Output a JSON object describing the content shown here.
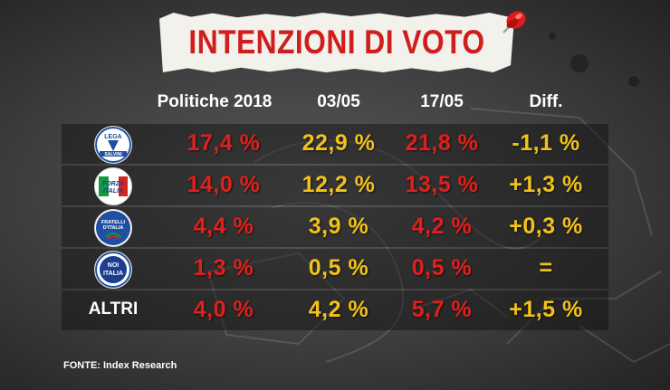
{
  "title": "INTENZIONI DI VOTO",
  "source": "FONTE: Index Research",
  "colors": {
    "title_red": "#d01e1e",
    "value_red": "#e0201c",
    "value_yellow": "#f2c21b"
  },
  "columns": [
    "Politiche 2018",
    "03/05",
    "17/05",
    "Diff."
  ],
  "rows": [
    {
      "label": "",
      "logo": "lega-salvini-logo",
      "logo_text": [
        "LEGA",
        "SALVINI"
      ],
      "values": [
        "17,4 %",
        "22,9 %",
        "21,8 %",
        "-1,1 %"
      ]
    },
    {
      "label": "",
      "logo": "forza-italia-logo",
      "logo_text": [
        "FORZA",
        "ITALIA"
      ],
      "values": [
        "14,0 %",
        "12,2 %",
        "13,5 %",
        "+1,3 %"
      ]
    },
    {
      "label": "",
      "logo": "fratelli-italia-logo",
      "logo_text": [
        "FRATELLI",
        "D'ITALIA"
      ],
      "values": [
        "4,4 %",
        "3,9 %",
        "4,2 %",
        "+0,3 %"
      ]
    },
    {
      "label": "",
      "logo": "noi-con-italia-logo",
      "logo_text": [
        "NOI",
        "ITALIA"
      ],
      "values": [
        "1,3 %",
        "0,5 %",
        "0,5 %",
        "="
      ]
    },
    {
      "label": "ALTRI",
      "logo": "",
      "logo_text": [],
      "values": [
        "4,0 %",
        "4,2 %",
        "5,7 %",
        "+1,5 %"
      ]
    }
  ],
  "chart_data": {
    "type": "table",
    "title": "INTENZIONI DI VOTO",
    "columns": [
      "Politiche 2018",
      "03/05",
      "17/05",
      "Diff."
    ],
    "series": [
      {
        "name": "Lega - Salvini",
        "values": [
          17.4,
          22.9,
          21.8,
          -1.1
        ]
      },
      {
        "name": "Forza Italia",
        "values": [
          14.0,
          12.2,
          13.5,
          1.3
        ]
      },
      {
        "name": "Fratelli d'Italia",
        "values": [
          4.4,
          3.9,
          4.2,
          0.3
        ]
      },
      {
        "name": "Noi con l'Italia",
        "values": [
          1.3,
          0.5,
          0.5,
          0.0
        ]
      },
      {
        "name": "ALTRI",
        "values": [
          4.0,
          4.2,
          5.7,
          1.5
        ]
      }
    ]
  }
}
